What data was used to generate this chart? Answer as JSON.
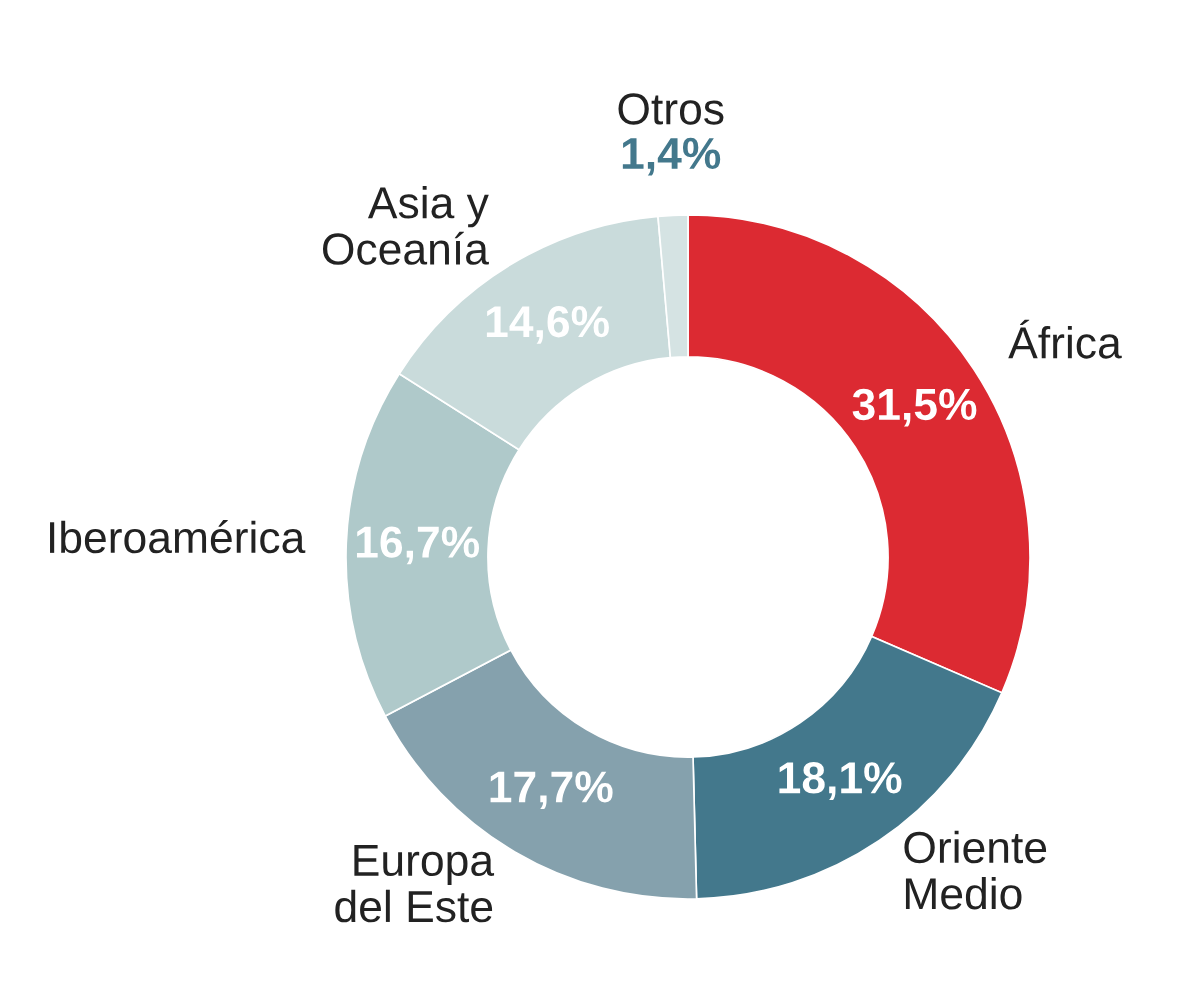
{
  "chart_data": {
    "type": "donut",
    "categories": [
      "África",
      "Oriente\nMedio",
      "Europa\ndel Este",
      "Iberoamérica",
      "Asia y\nOceanía",
      "Otros"
    ],
    "values": [
      31.5,
      18.1,
      17.7,
      16.7,
      14.6,
      1.4
    ],
    "value_labels": [
      "31,5%",
      "18,1%",
      "17,7%",
      "16,7%",
      "14,6%",
      "1,4%"
    ],
    "colors": [
      "#dc2a32",
      "#43788c",
      "#85a1ad",
      "#afc9ca",
      "#c9dbdb",
      "#d5e3e3"
    ],
    "legend": false
  }
}
